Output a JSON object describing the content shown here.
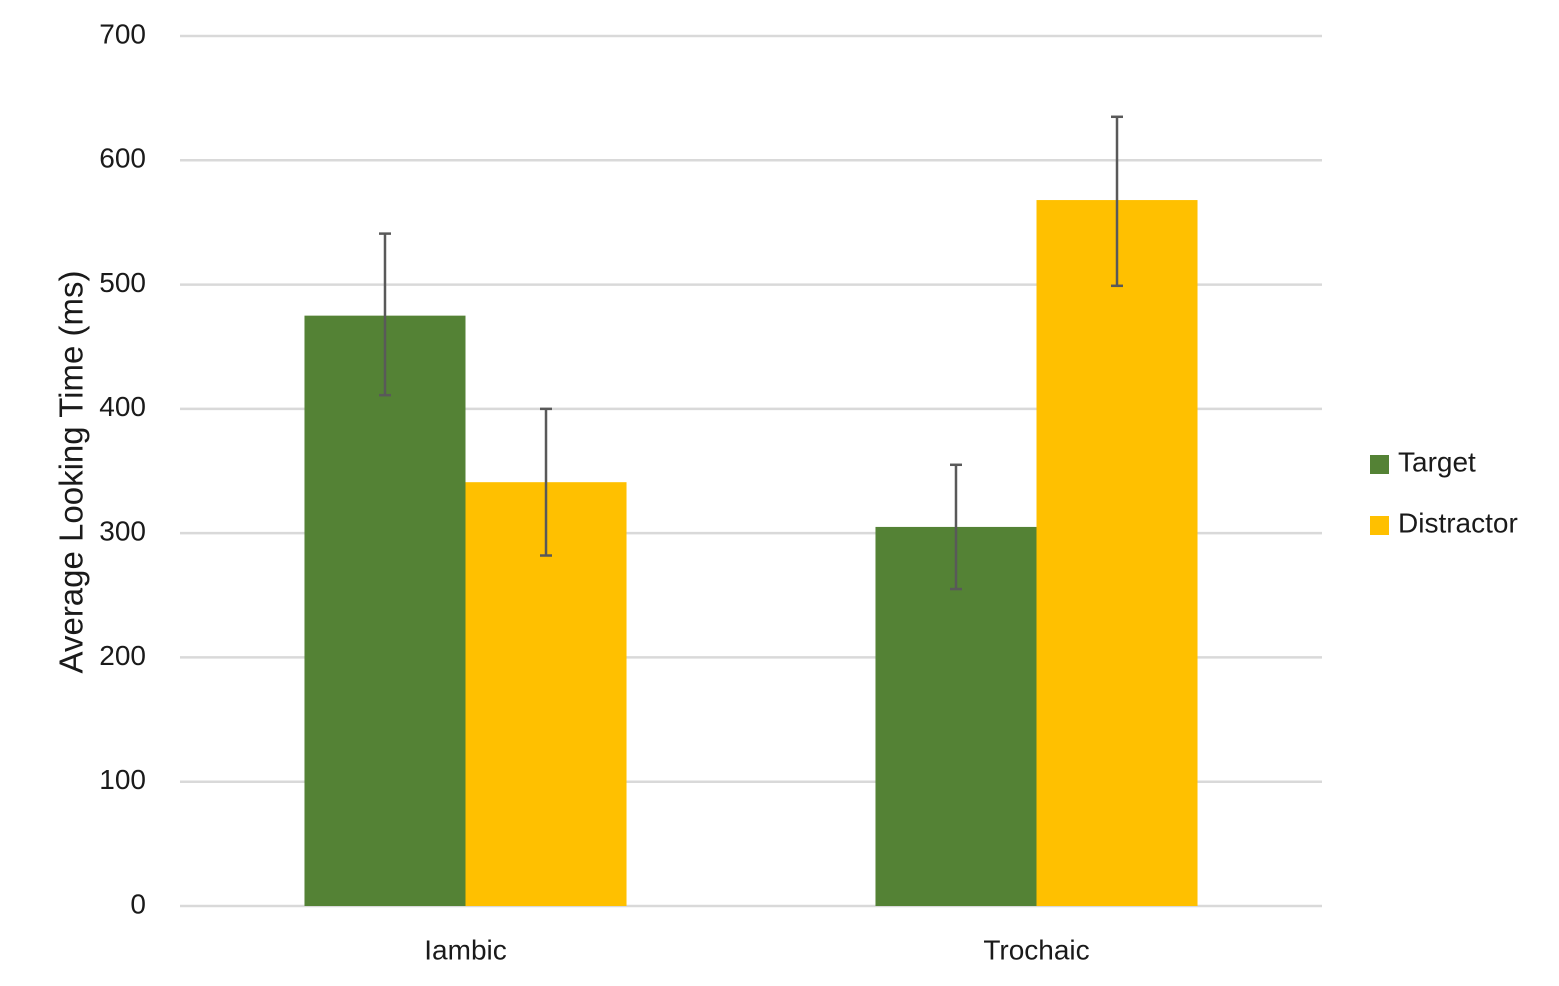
{
  "chart_data": {
    "type": "bar",
    "title": "",
    "xlabel": "",
    "ylabel": "Average Looking Time (ms)",
    "categories": [
      "Iambic",
      "Trochaic"
    ],
    "ylim": [
      0,
      700
    ],
    "yticks": [
      0,
      100,
      200,
      300,
      400,
      500,
      600,
      700
    ],
    "grid": true,
    "legend_position": "right",
    "series": [
      {
        "name": "Target",
        "color": "#548235",
        "values": [
          475,
          305
        ],
        "error_low": [
          411,
          255
        ],
        "error_high": [
          541,
          355
        ]
      },
      {
        "name": "Distractor",
        "color": "#FFC000",
        "values": [
          341,
          568
        ],
        "error_low": [
          282,
          499
        ],
        "error_high": [
          400,
          635
        ]
      }
    ]
  }
}
